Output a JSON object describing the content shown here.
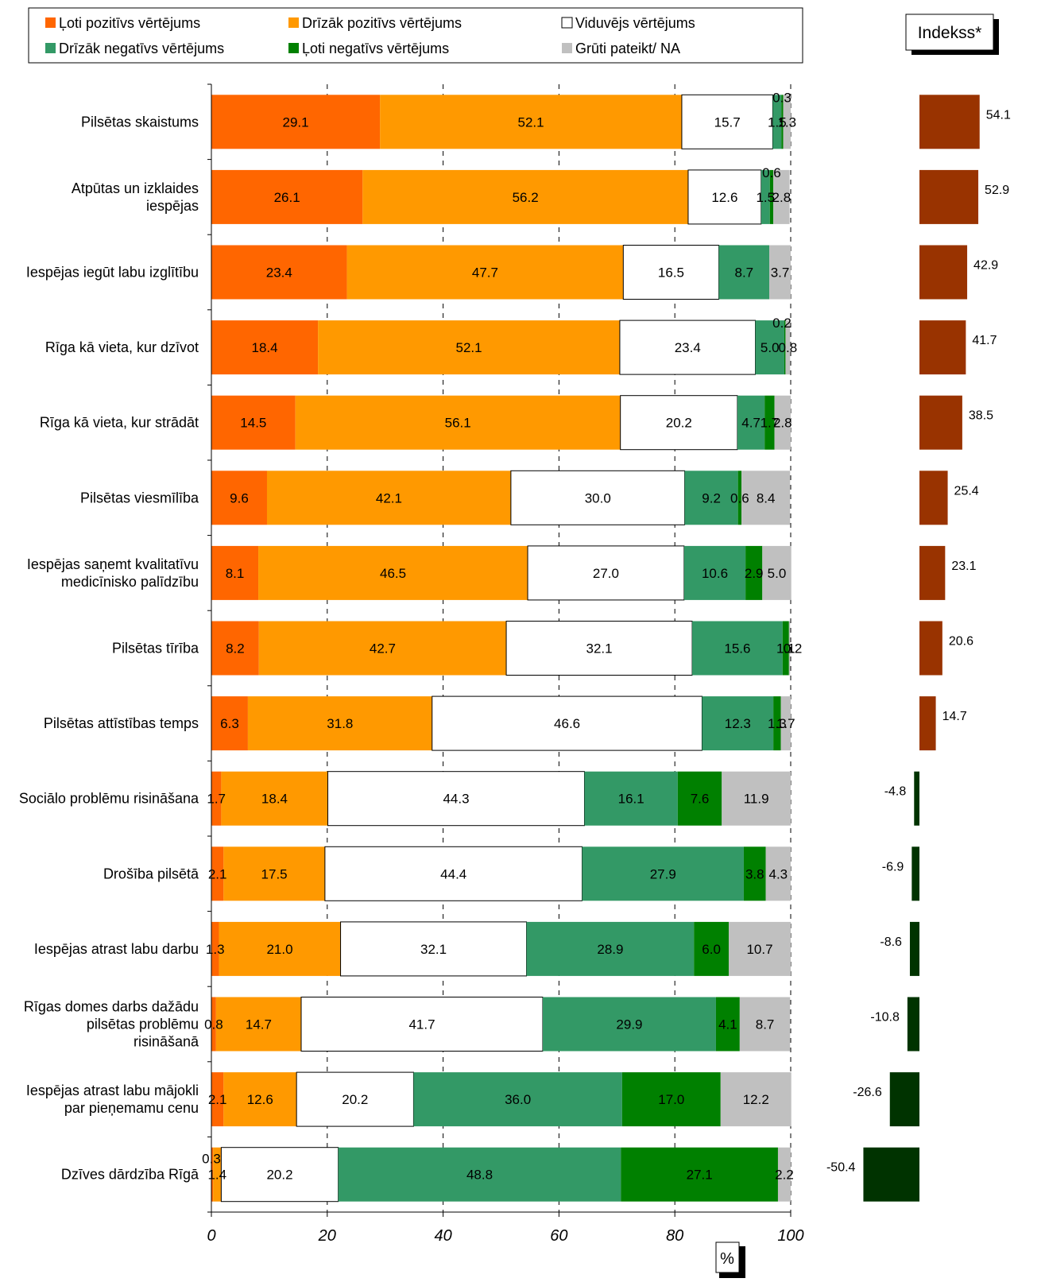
{
  "chart_data": {
    "type": "bar",
    "subtype": "stacked-horizontal-100",
    "legend": {
      "placement": "top",
      "entries": [
        {
          "label": "Ļoti pozitīvs vērtējums",
          "color": "#FF6600"
        },
        {
          "label": "Drīzāk pozitīvs vērtējums",
          "color": "#FF9900"
        },
        {
          "label": "Viduvējs vērtējums",
          "color": "#FFFFFF"
        },
        {
          "label": "Drīzāk negatīvs vērtējums",
          "color": "#339966"
        },
        {
          "label": "Ļoti negatīvs vērtējums",
          "color": "#008000"
        },
        {
          "label": "Grūti pateikt/ NA",
          "color": "#C0C0C0"
        }
      ]
    },
    "categories": [
      [
        "Pilsētas skaistums"
      ],
      [
        "Atpūtas un izklaides",
        "iespējas"
      ],
      [
        "Iespējas iegūt labu izglītību"
      ],
      [
        "Rīga kā vieta, kur dzīvot"
      ],
      [
        "Rīga kā vieta, kur strādāt"
      ],
      [
        "Pilsētas viesmīlība"
      ],
      [
        "Iespējas saņemt kvalitatīvu",
        "medicīnisko palīdzību"
      ],
      [
        "Pilsētas tīrība"
      ],
      [
        "Pilsētas attīstības temps"
      ],
      [
        "Sociālo problēmu risināšana"
      ],
      [
        "Drošība pilsētā"
      ],
      [
        "Iespējas atrast labu darbu"
      ],
      [
        "Rīgas domes darbs dažādu",
        "pilsētas problēmu",
        "risināšanā"
      ],
      [
        "Iespējas atrast labu mājokli",
        "par pieņemamu cenu"
      ],
      [
        "Dzīves dārdzība Rīgā"
      ]
    ],
    "series": [
      {
        "name": "Ļoti pozitīvs vērtējums",
        "values": [
          29.1,
          26.1,
          23.4,
          18.4,
          14.5,
          9.6,
          8.1,
          8.2,
          6.3,
          1.7,
          2.1,
          1.3,
          0.8,
          2.1,
          0.3
        ]
      },
      {
        "name": "Drīzāk pozitīvs vērtējums",
        "values": [
          52.1,
          56.2,
          47.7,
          52.1,
          56.1,
          42.1,
          46.5,
          42.7,
          31.8,
          18.4,
          17.5,
          21.0,
          14.7,
          12.6,
          1.4
        ]
      },
      {
        "name": "Viduvējs vērtējums",
        "values": [
          15.7,
          12.6,
          16.5,
          23.4,
          20.2,
          30.0,
          27.0,
          32.1,
          46.6,
          44.3,
          44.4,
          32.1,
          41.7,
          20.2,
          20.2
        ]
      },
      {
        "name": "Drīzāk negatīvs vērtējums",
        "values": [
          1.5,
          1.5,
          8.7,
          5.0,
          4.7,
          9.2,
          10.6,
          15.6,
          12.3,
          16.1,
          27.9,
          28.9,
          29.9,
          36.0,
          48.8
        ]
      },
      {
        "name": "Ļoti negatīvs vērtējums",
        "values": [
          0.3,
          0.6,
          0.0,
          0.2,
          1.7,
          0.6,
          2.9,
          1.1,
          1.3,
          7.6,
          3.8,
          6.0,
          4.1,
          17.0,
          27.1
        ]
      },
      {
        "name": "Grūti pateikt/ NA",
        "values": [
          1.3,
          2.8,
          3.7,
          0.8,
          2.8,
          8.4,
          5.0,
          0.2,
          1.7,
          11.9,
          4.3,
          10.7,
          8.7,
          12.2,
          2.2
        ]
      }
    ],
    "xlim": [
      0,
      100
    ],
    "xticks": [
      "0",
      "20",
      "40",
      "60",
      "80",
      "100"
    ],
    "xunit": "%",
    "index": {
      "title": "Indekss*",
      "values": [
        54.1,
        52.9,
        42.9,
        41.7,
        38.5,
        25.4,
        23.1,
        20.6,
        14.7,
        -4.8,
        -6.9,
        -8.6,
        -10.8,
        -26.6,
        -50.4
      ],
      "positive_color": "#993300",
      "negative_color": "#003300"
    },
    "grid": "vertical dashed"
  }
}
